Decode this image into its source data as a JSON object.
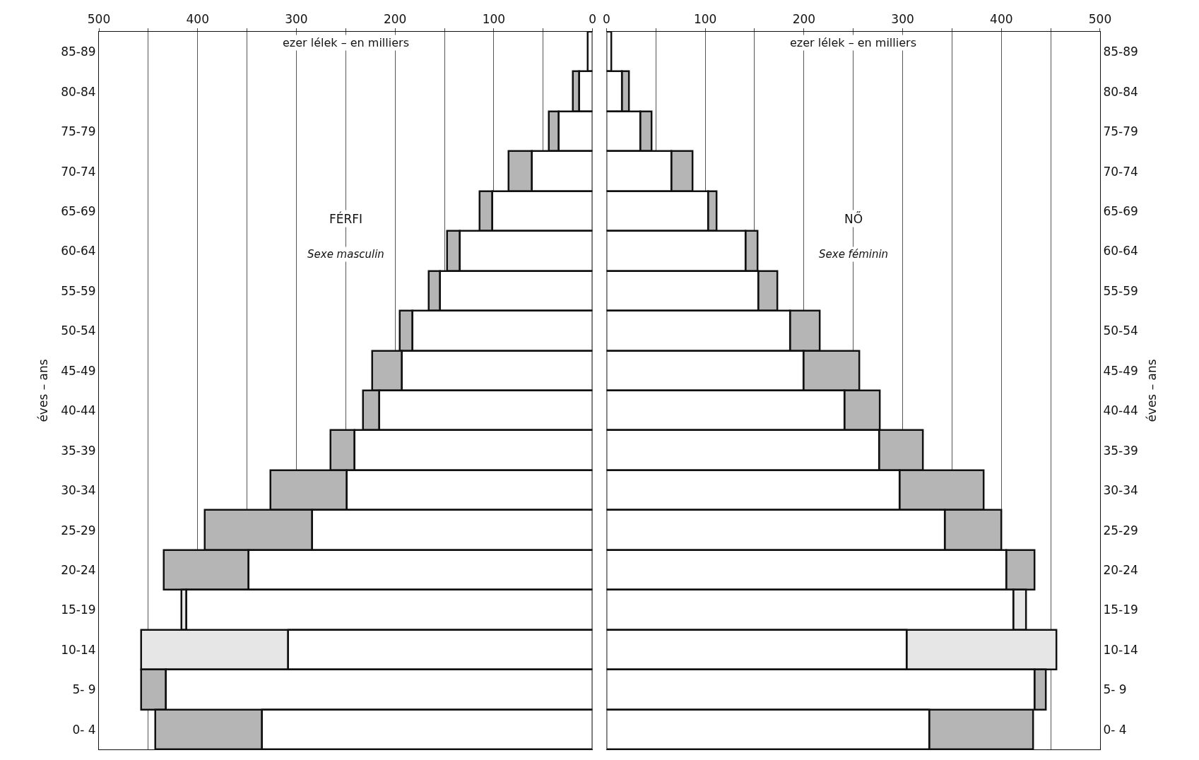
{
  "chart_data": [
    {
      "type": "bar",
      "orientation": "horizontal",
      "stacked": true,
      "ylabel": "éves – ans",
      "categories": [
        "85-89",
        "80-84",
        "75-79",
        "70-74",
        "65-69",
        "60-64",
        "55-59",
        "50-54",
        "45-49",
        "40-44",
        "35-39",
        "30-34",
        "25-29",
        "20-24",
        "15-19",
        "10-14",
        "5- 9",
        "0- 4"
      ],
      "series": [
        {
          "color": "#ffffff",
          "values": [
            5,
            13,
            34,
            61,
            101,
            134,
            154,
            182,
            193,
            216,
            241,
            249,
            284,
            348,
            411,
            308,
            432,
            335
          ]
        },
        {
          "colors": [
            "#b5b5b5",
            "#b5b5b5",
            "#b5b5b5",
            "#b5b5b5",
            "#b5b5b5",
            "#b5b5b5",
            "#b5b5b5",
            "#b5b5b5",
            "#b5b5b5",
            "#b5b5b5",
            "#b5b5b5",
            "#b5b5b5",
            "#b5b5b5",
            "#b5b5b5",
            "#e6e6e6",
            "#e6e6e6",
            "#b5b5b5",
            "#b5b5b5"
          ],
          "values": [
            null,
            7,
            10,
            24,
            13,
            13,
            12,
            13,
            30,
            16,
            24,
            77,
            109,
            86,
            5,
            149,
            25,
            108
          ]
        }
      ],
      "xlim": [
        500,
        0
      ],
      "xticks": [
        500,
        {
          "value": 450,
          "label": null
        },
        400,
        {
          "value": 350,
          "label": null
        },
        300,
        {
          "value": 250,
          "label": null
        },
        200,
        {
          "value": 150,
          "label": null
        },
        100,
        {
          "value": 50,
          "label": null
        },
        0
      ],
      "grid": "x",
      "annotations": [
        "ezer lélek – en milliers",
        "FÉRFI",
        "Sexe masculin"
      ]
    },
    {
      "type": "bar",
      "orientation": "horizontal",
      "stacked": true,
      "ylabel": "éves – ans",
      "categories": [
        "85-89",
        "80-84",
        "75-79",
        "70-74",
        "65-69",
        "60-64",
        "55-59",
        "50-54",
        "45-49",
        "40-44",
        "35-39",
        "30-34",
        "25-29",
        "20-24",
        "15-19",
        "10-14",
        "5- 9",
        "0- 4"
      ],
      "series": [
        {
          "color": "#ffffff",
          "values": [
            5,
            16,
            34,
            66,
            103,
            141,
            154,
            186,
            200,
            241,
            276,
            297,
            343,
            405,
            412,
            304,
            434,
            327
          ]
        },
        {
          "colors": [
            "#b5b5b5",
            "#b5b5b5",
            "#b5b5b5",
            "#b5b5b5",
            "#b5b5b5",
            "#b5b5b5",
            "#b5b5b5",
            "#b5b5b5",
            "#b5b5b5",
            "#b5b5b5",
            "#b5b5b5",
            "#b5b5b5",
            "#b5b5b5",
            "#b5b5b5",
            "#e6e6e6",
            "#e6e6e6",
            "#b5b5b5",
            "#b5b5b5"
          ],
          "values": [
            null,
            7,
            12,
            21,
            9,
            12,
            19,
            30,
            56,
            36,
            45,
            85,
            57,
            29,
            13,
            152,
            11,
            105
          ]
        }
      ],
      "xlim": [
        0,
        500
      ],
      "xticks": [
        0,
        {
          "value": 50,
          "label": null
        },
        100,
        {
          "value": 150,
          "label": null
        },
        200,
        {
          "value": 250,
          "label": null
        },
        300,
        {
          "value": 350,
          "label": null
        },
        400,
        {
          "value": 450,
          "label": null
        },
        500
      ],
      "grid": "x",
      "annotations": [
        "ezer lélek – en milliers",
        "NŐ",
        "Sexe féminin"
      ]
    }
  ]
}
